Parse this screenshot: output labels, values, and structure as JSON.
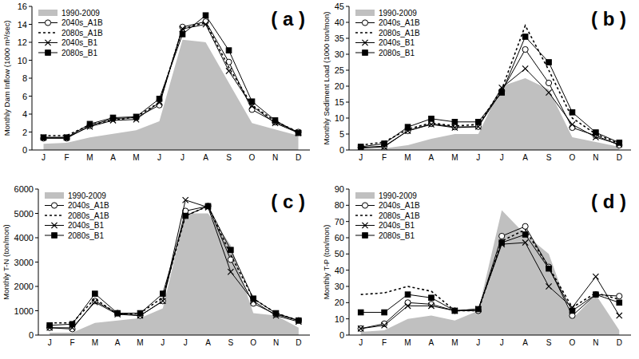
{
  "chart_data": [
    {
      "type": "line",
      "title": "( a )",
      "y_label": "Monthly Dam Inflow (1000 m³/sec)",
      "categories": [
        "J",
        "F",
        "M",
        "A",
        "M",
        "J",
        "J",
        "A",
        "S",
        "O",
        "N",
        "D"
      ],
      "ylim": [
        0,
        16
      ],
      "yticks": [
        0,
        2,
        4,
        6,
        8,
        10,
        12,
        14,
        16
      ],
      "grid": false,
      "legend": "upper left",
      "series": [
        {
          "name": "1990-2009",
          "type": "area",
          "color": "#c0c0c0",
          "values": [
            0.7,
            0.8,
            1.4,
            1.8,
            2.2,
            3.2,
            12.3,
            12.0,
            7.5,
            3.0,
            2.3,
            1.6
          ]
        },
        {
          "name": "2040s_A1B",
          "type": "line",
          "color": "#000000",
          "marker": "circle-open",
          "line_style": "solid",
          "values": [
            1.3,
            1.3,
            2.7,
            3.5,
            3.6,
            5.0,
            13.7,
            14.3,
            9.8,
            4.5,
            3.1,
            2.0
          ]
        },
        {
          "name": "2080s_A1B",
          "type": "line",
          "color": "#000000",
          "marker": "none",
          "line_style": "dashed",
          "values": [
            1.6,
            1.6,
            2.8,
            3.3,
            3.7,
            5.3,
            13.5,
            14.2,
            9.2,
            5.0,
            3.2,
            2.0
          ]
        },
        {
          "name": "2040s_B1",
          "type": "line",
          "color": "#000000",
          "marker": "x",
          "line_style": "solid",
          "values": [
            1.4,
            1.4,
            2.6,
            3.3,
            3.4,
            5.3,
            13.5,
            14.0,
            8.8,
            4.9,
            3.0,
            1.9
          ]
        },
        {
          "name": "2080s_B1",
          "type": "line",
          "color": "#000000",
          "marker": "square",
          "line_style": "solid",
          "values": [
            1.4,
            1.4,
            2.9,
            3.6,
            3.7,
            5.7,
            12.9,
            15.0,
            11.1,
            5.4,
            3.3,
            1.9
          ]
        }
      ]
    },
    {
      "type": "line",
      "title": "( b )",
      "y_label": "Monthly Sediment Load (1000 ton/mon)",
      "categories": [
        "J",
        "F",
        "M",
        "A",
        "M",
        "J",
        "J",
        "A",
        "S",
        "O",
        "N",
        "D"
      ],
      "ylim": [
        0,
        45
      ],
      "yticks": [
        0,
        5,
        10,
        15,
        20,
        25,
        30,
        35,
        40,
        45
      ],
      "grid": false,
      "legend": "upper left",
      "series": [
        {
          "name": "1990-2009",
          "type": "area",
          "color": "#c0c0c0",
          "values": [
            0.3,
            0.5,
            1.5,
            3.5,
            5,
            5,
            20,
            22.5,
            19,
            4,
            2.5,
            1
          ]
        },
        {
          "name": "2040s_A1B",
          "type": "line",
          "color": "#000000",
          "marker": "circle-open",
          "line_style": "solid",
          "values": [
            0.8,
            1.2,
            6.0,
            8.2,
            7.2,
            7.3,
            18.5,
            31.5,
            21,
            7,
            4.5,
            1.5
          ]
        },
        {
          "name": "2080s_A1B",
          "type": "line",
          "color": "#000000",
          "marker": "none",
          "line_style": "dashed",
          "values": [
            1.5,
            2.5,
            6.5,
            8.5,
            7.5,
            8.0,
            19,
            39,
            25,
            10,
            5,
            2
          ]
        },
        {
          "name": "2040s_B1",
          "type": "line",
          "color": "#000000",
          "marker": "x",
          "line_style": "solid",
          "values": [
            0.6,
            1.0,
            6.0,
            8.0,
            7.0,
            7.3,
            19.5,
            25.5,
            18,
            8,
            4,
            1.8
          ]
        },
        {
          "name": "2080s_B1",
          "type": "line",
          "color": "#000000",
          "marker": "square",
          "line_style": "solid",
          "values": [
            1.0,
            2.0,
            7.2,
            9.8,
            8.8,
            8.8,
            18,
            35.5,
            27.5,
            11.8,
            5.5,
            2.3
          ]
        }
      ]
    },
    {
      "type": "line",
      "title": "( c )",
      "y_label": "Monthly T-N (ton/mon)",
      "categories": [
        "J",
        "F",
        "M",
        "A",
        "M",
        "J",
        "J",
        "A",
        "S",
        "O",
        "N",
        "D"
      ],
      "ylim": [
        0,
        6000
      ],
      "yticks": [
        0,
        1000,
        2000,
        3000,
        4000,
        5000,
        6000
      ],
      "grid": false,
      "legend": "upper left",
      "series": [
        {
          "name": "1990-2009",
          "type": "area",
          "color": "#c0c0c0",
          "values": [
            100,
            100,
            500,
            600,
            700,
            1100,
            5000,
            5000,
            3700,
            900,
            800,
            300
          ]
        },
        {
          "name": "2040s_A1B",
          "type": "line",
          "color": "#000000",
          "marker": "circle-open",
          "line_style": "solid",
          "values": [
            300,
            250,
            1400,
            900,
            800,
            1400,
            5100,
            5300,
            3100,
            1300,
            850,
            600
          ]
        },
        {
          "name": "2080s_A1B",
          "type": "line",
          "color": "#000000",
          "marker": "none",
          "line_style": "dashed",
          "values": [
            500,
            500,
            1500,
            850,
            900,
            1550,
            4900,
            5300,
            3300,
            1500,
            900,
            600
          ]
        },
        {
          "name": "2040s_B1",
          "type": "line",
          "color": "#000000",
          "marker": "x",
          "line_style": "solid",
          "values": [
            300,
            300,
            1350,
            850,
            800,
            1400,
            5550,
            5250,
            2600,
            1400,
            800,
            550
          ]
        },
        {
          "name": "2080s_B1",
          "type": "line",
          "color": "#000000",
          "marker": "square",
          "line_style": "solid",
          "values": [
            400,
            450,
            1700,
            900,
            900,
            1700,
            4900,
            5300,
            3500,
            1500,
            900,
            600
          ]
        }
      ]
    },
    {
      "type": "line",
      "title": "( d )",
      "y_label": "Monthly T-P (ton/mon)",
      "categories": [
        "J",
        "F",
        "M",
        "A",
        "M",
        "J",
        "J",
        "A",
        "S",
        "O",
        "N",
        "D"
      ],
      "ylim": [
        0,
        90
      ],
      "yticks": [
        0,
        10,
        20,
        30,
        40,
        50,
        60,
        70,
        80,
        90
      ],
      "grid": false,
      "legend": "upper left",
      "series": [
        {
          "name": "1990-2009",
          "type": "area",
          "color": "#c0c0c0",
          "values": [
            2,
            3,
            10,
            12,
            9,
            15,
            77,
            62,
            50,
            10,
            25,
            3
          ]
        },
        {
          "name": "2040s_A1B",
          "type": "line",
          "color": "#000000",
          "marker": "circle-open",
          "line_style": "solid",
          "values": [
            4,
            7,
            20,
            19,
            15,
            15,
            61,
            67,
            42,
            12,
            25,
            24
          ]
        },
        {
          "name": "2080s_A1B",
          "type": "line",
          "color": "#000000",
          "marker": "none",
          "line_style": "dashed",
          "values": [
            25,
            26,
            30,
            27,
            15,
            15,
            58,
            65,
            42,
            17,
            26,
            22
          ]
        },
        {
          "name": "2040s_B1",
          "type": "line",
          "color": "#000000",
          "marker": "x",
          "line_style": "solid",
          "values": [
            4,
            6,
            18,
            18,
            15,
            16,
            56,
            57,
            30,
            17,
            36,
            12
          ]
        },
        {
          "name": "2080s_B1",
          "type": "line",
          "color": "#000000",
          "marker": "square",
          "line_style": "solid",
          "values": [
            14,
            14,
            25,
            23,
            15,
            16,
            57,
            62,
            41,
            15,
            25,
            20
          ]
        }
      ]
    }
  ]
}
